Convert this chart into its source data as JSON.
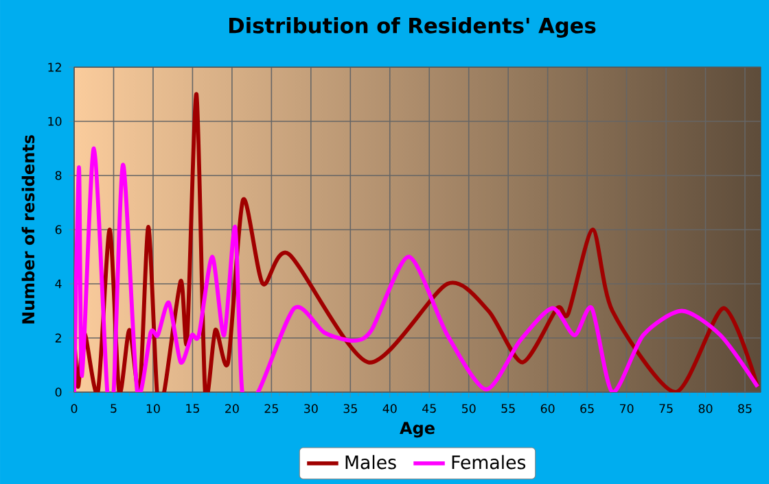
{
  "chart_data": {
    "type": "line",
    "title": "Distribution of Residents' Ages",
    "xlabel": "Age",
    "ylabel": "Number of residents",
    "xlim": [
      0,
      87
    ],
    "ylim": [
      0,
      12
    ],
    "xticks": [
      0,
      5,
      10,
      15,
      20,
      25,
      30,
      35,
      40,
      45,
      50,
      55,
      60,
      65,
      70,
      75,
      80,
      85
    ],
    "yticks": [
      0,
      2,
      4,
      6,
      8,
      10,
      12
    ],
    "grid": true,
    "legend": "bottom",
    "marker": "none",
    "line_style": "solid",
    "series": [
      {
        "name": "Males",
        "color": "#a00000",
        "x": [
          0,
          0.5,
          1.3,
          3,
          4.5,
          5.7,
          7,
          8.3,
          9.4,
          10.5,
          11.4,
          13.5,
          14.3,
          15.5,
          16.6,
          17.9,
          19.5,
          21.4,
          23.9,
          27.2,
          37.3,
          47.3,
          52.5,
          56.8,
          61.2,
          62.6,
          65.7,
          68.2,
          76.2,
          82.3,
          86.6
        ],
        "values": [
          2.1,
          0.2,
          2.2,
          0,
          6,
          0,
          2.3,
          0,
          6.1,
          0,
          0,
          4.1,
          1.9,
          11,
          0,
          2.3,
          1.1,
          7.1,
          4,
          5.1,
          1.1,
          4,
          3,
          1.1,
          3.1,
          2.9,
          6,
          3,
          0,
          3.1,
          0.2
        ]
      },
      {
        "name": "Females",
        "color": "#ff00ff",
        "x": [
          0,
          0.6,
          1.0,
          2.5,
          4.2,
          5.0,
          6.2,
          8,
          9.7,
          10.6,
          12,
          13.5,
          14.9,
          15.8,
          17.5,
          19,
          20.4,
          21.3,
          23.3,
          27.9,
          31.7,
          35.4,
          37.7,
          42.4,
          47.3,
          52.2,
          56.5,
          60.6,
          63.4,
          65.6,
          68.2,
          72.1,
          77,
          81.9,
          86.6
        ],
        "values": [
          0,
          8.3,
          0.6,
          9,
          0,
          0,
          8.4,
          0,
          2.2,
          2.1,
          3.3,
          1.1,
          2.1,
          2.1,
          5,
          2.1,
          6.1,
          0,
          0,
          3.1,
          2.2,
          1.9,
          2.3,
          5,
          2.1,
          0.1,
          1.9,
          3.1,
          2.1,
          3.1,
          0,
          2.1,
          3,
          2.1,
          0.2
        ]
      }
    ]
  }
}
